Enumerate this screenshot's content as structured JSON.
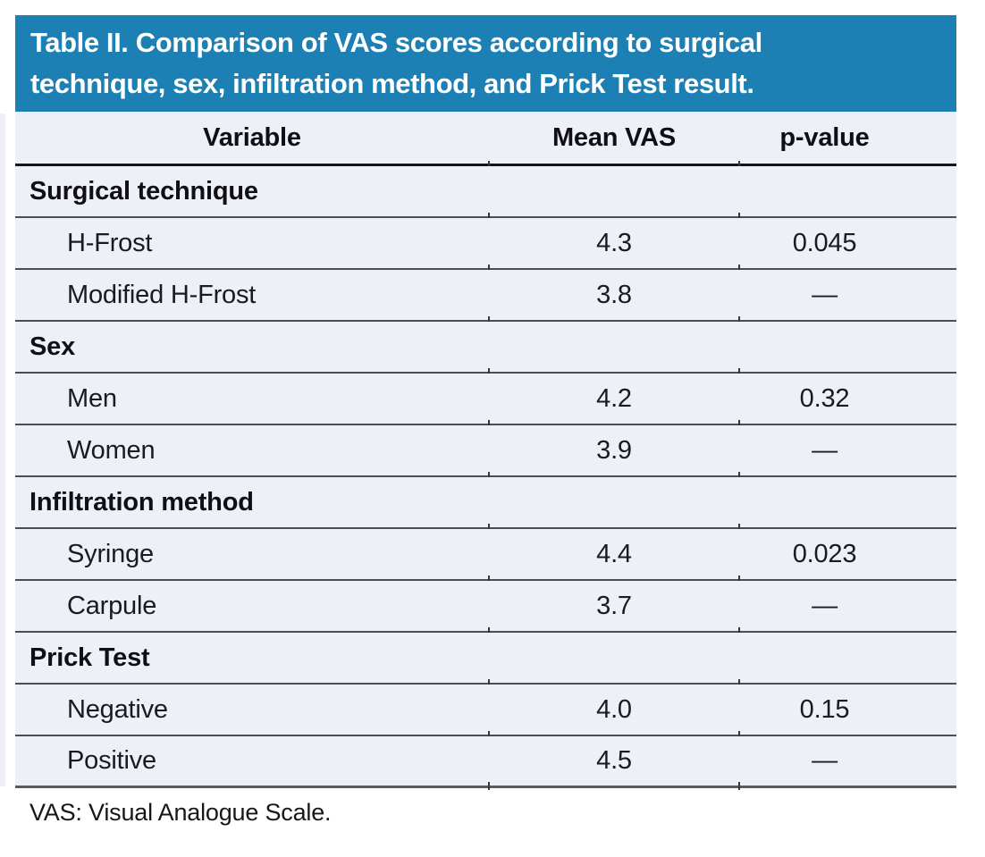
{
  "table": {
    "title_line1": "Table II. Comparison of VAS scores according to surgical",
    "title_line2": "technique, sex, infiltration method, and Prick Test result.",
    "columns": [
      "Variable",
      "Mean VAS",
      "p-value"
    ],
    "sections": [
      {
        "name": "Surgical technique",
        "rows": [
          {
            "label": "H-Frost",
            "mean_vas": "4.3",
            "p_value": "0.045"
          },
          {
            "label": "Modified H-Frost",
            "mean_vas": "3.8",
            "p_value": "—"
          }
        ]
      },
      {
        "name": "Sex",
        "rows": [
          {
            "label": "Men",
            "mean_vas": "4.2",
            "p_value": "0.32"
          },
          {
            "label": "Women",
            "mean_vas": "3.9",
            "p_value": "—"
          }
        ]
      },
      {
        "name": "Infiltration method",
        "rows": [
          {
            "label": "Syringe",
            "mean_vas": "4.4",
            "p_value": "0.023"
          },
          {
            "label": "Carpule",
            "mean_vas": "3.7",
            "p_value": "—"
          }
        ]
      },
      {
        "name": "Prick Test",
        "rows": [
          {
            "label": "Negative",
            "mean_vas": "4.0",
            "p_value": "0.15"
          },
          {
            "label": "Positive",
            "mean_vas": "4.5",
            "p_value": "—"
          }
        ]
      }
    ],
    "footnote": "VAS: Visual Analogue Scale."
  },
  "colors": {
    "header_bg": "#1d80b4",
    "header_text": "#ffffff",
    "row_bg": "#edf0f7",
    "heavy_border": "#14161d",
    "row_border": "#4a4e57",
    "bottom_border": "#565b63",
    "text": "#1b1b1f"
  }
}
